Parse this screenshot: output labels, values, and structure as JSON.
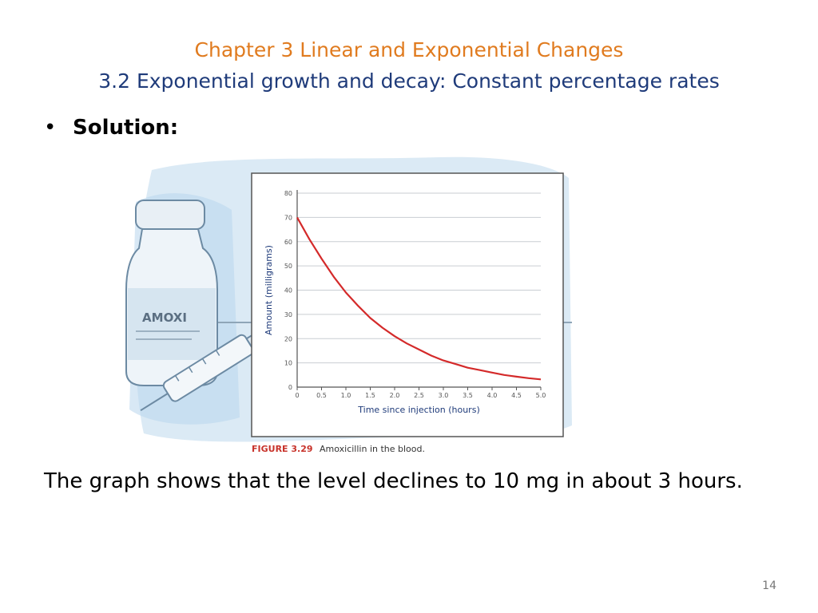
{
  "slide": {
    "title_line1": "Chapter 3 Linear and Exponential Changes",
    "title_line2": "3.2 Exponential growth and decay: Constant percentage rates",
    "bullet_symbol": "•",
    "bullet_label": "Solution:",
    "body_text": "The graph shows that the level declines to 10 mg in about 3 hours.",
    "page_number": "14"
  },
  "illustration": {
    "vial_label": "AMOXI"
  },
  "figure": {
    "label": "FIGURE 3.29",
    "caption": "Amoxicillin in the blood."
  },
  "chart_data": {
    "type": "line",
    "xlabel": "Time since injection (hours)",
    "ylabel": "Amount (milligrams)",
    "xlim": [
      0,
      5
    ],
    "ylim": [
      0,
      80
    ],
    "x_ticks": [
      "0",
      "0.5",
      "1.0",
      "1.5",
      "2.0",
      "2.5",
      "3.0",
      "3.5",
      "4.0",
      "4.5",
      "5.0"
    ],
    "y_ticks": [
      "0",
      "10",
      "20",
      "30",
      "40",
      "50",
      "60",
      "70",
      "80"
    ],
    "grid": true,
    "series": [
      {
        "color": "#d42a2a",
        "x": [
          0,
          0.25,
          0.5,
          0.75,
          1.0,
          1.25,
          1.5,
          1.75,
          2.0,
          2.25,
          2.5,
          2.75,
          3.0,
          3.25,
          3.5,
          3.75,
          4.0,
          4.25,
          4.5,
          4.75,
          5.0
        ],
        "y": [
          70,
          61,
          53,
          45.5,
          39,
          33.5,
          28.5,
          24.5,
          21,
          18,
          15.5,
          13,
          11,
          9.5,
          8,
          7,
          6,
          5,
          4.3,
          3.7,
          3.2
        ]
      }
    ]
  },
  "colors": {
    "title_orange": "#e07b1f",
    "title_blue": "#1f3b7a",
    "figure_label_red": "#c8332b",
    "curve_red": "#d42a2a"
  }
}
